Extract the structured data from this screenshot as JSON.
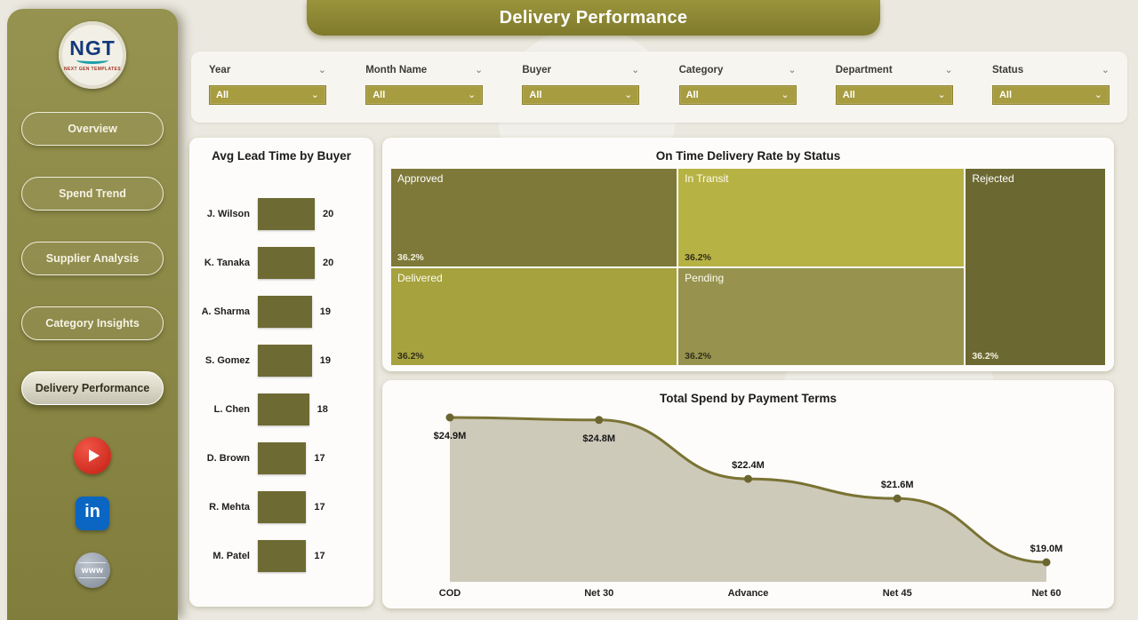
{
  "colors": {
    "sidebar": "#8f8b4a",
    "banner": "#8a8433",
    "filter_dropdown": "#a79c3f",
    "bar": "#6e6a33",
    "line": "#7a7334",
    "area_fill": "#cdcaba",
    "page_bg": "#ebe8e0"
  },
  "header": {
    "title": "Delivery Performance"
  },
  "sidebar": {
    "logo": {
      "text": "NGT",
      "subtext": "NEXT GEN TEMPLATES"
    },
    "items": [
      {
        "label": "Overview",
        "active": false
      },
      {
        "label": "Spend Trend",
        "active": false
      },
      {
        "label": "Supplier Analysis",
        "active": false
      },
      {
        "label": "Category Insights",
        "active": false
      },
      {
        "label": "Delivery Performance",
        "active": true
      }
    ],
    "social": [
      {
        "name": "youtube",
        "glyph": ""
      },
      {
        "name": "linkedin",
        "glyph": "in"
      },
      {
        "name": "website",
        "glyph": "www"
      }
    ]
  },
  "filters": [
    {
      "label": "Year",
      "value": "All"
    },
    {
      "label": "Month Name",
      "value": "All"
    },
    {
      "label": "Buyer",
      "value": "All"
    },
    {
      "label": "Category",
      "value": "All"
    },
    {
      "label": "Department",
      "value": "All"
    },
    {
      "label": "Status",
      "value": "All"
    }
  ],
  "chart_data": [
    {
      "type": "bar",
      "title": "Avg Lead Time by Buyer",
      "orientation": "horizontal",
      "categories": [
        "J. Wilson",
        "K. Tanaka",
        "A. Sharma",
        "S. Gomez",
        "L. Chen",
        "D. Brown",
        "R. Mehta",
        "M. Patel"
      ],
      "values": [
        20,
        20,
        19,
        19,
        18,
        17,
        17,
        17
      ],
      "bar_color": "#6e6a33",
      "value_labels_shown": true
    },
    {
      "type": "treemap",
      "title": "On Time Delivery Rate by Status",
      "items": [
        {
          "label": "Approved",
          "value": "36.2%",
          "color": "#7e7939",
          "text_color": "#ffffff",
          "pct_color": "#f2f0df",
          "area": "a"
        },
        {
          "label": "In Transit",
          "value": "36.2%",
          "color": "#b7b244",
          "text_color": "#fdfdf0",
          "pct_color": "#32301a",
          "area": "b"
        },
        {
          "label": "Delivered",
          "value": "36.2%",
          "color": "#a6a23e",
          "text_color": "#fdfdf0",
          "pct_color": "#32301a",
          "area": "c"
        },
        {
          "label": "Pending",
          "value": "36.2%",
          "color": "#97924e",
          "text_color": "#fdfdf0",
          "pct_color": "#32301a",
          "area": "d"
        },
        {
          "label": "Rejected",
          "value": "36.2%",
          "color": "#6c6831",
          "text_color": "#ffffff",
          "pct_color": "#f2f0df",
          "area": "e"
        }
      ]
    },
    {
      "type": "area",
      "title": "Total Spend by Payment Terms",
      "categories": [
        "COD",
        "Net 30",
        "Advance",
        "Net 45",
        "Net 60"
      ],
      "values": [
        24.9,
        24.8,
        22.4,
        21.6,
        19.0
      ],
      "data_labels": [
        "$24.9M",
        "$24.8M",
        "$22.4M",
        "$21.6M",
        "$19.0M"
      ],
      "label_positions": [
        "below",
        "below",
        "above",
        "above",
        "above"
      ],
      "line_color": "#7a7334",
      "point_color": "#6b6530",
      "area_fill": "#cdcaba"
    }
  ]
}
